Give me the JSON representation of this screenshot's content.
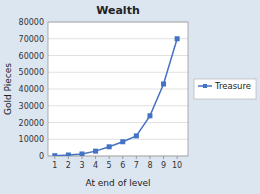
{
  "chart_data": {
    "type": "line",
    "title": "Wealth",
    "xlabel": "At end of level",
    "ylabel": "Gold Pieces",
    "x": [
      1,
      2,
      3,
      4,
      5,
      6,
      7,
      8,
      9,
      10
    ],
    "series": [
      {
        "name": "Treasure",
        "color": "#4472c4",
        "marker": "square",
        "values": [
          200,
          600,
          1200,
          2900,
          5500,
          8500,
          12000,
          24000,
          43000,
          70000
        ]
      }
    ],
    "xlim": [
      0.5,
      10.8
    ],
    "xticks": [
      1,
      2,
      3,
      4,
      5,
      6,
      7,
      8,
      9,
      10
    ],
    "ylim": [
      0,
      80000
    ],
    "yticks": [
      0,
      10000,
      20000,
      30000,
      40000,
      50000,
      60000,
      70000,
      80000
    ],
    "grid": true,
    "legend": "right"
  }
}
